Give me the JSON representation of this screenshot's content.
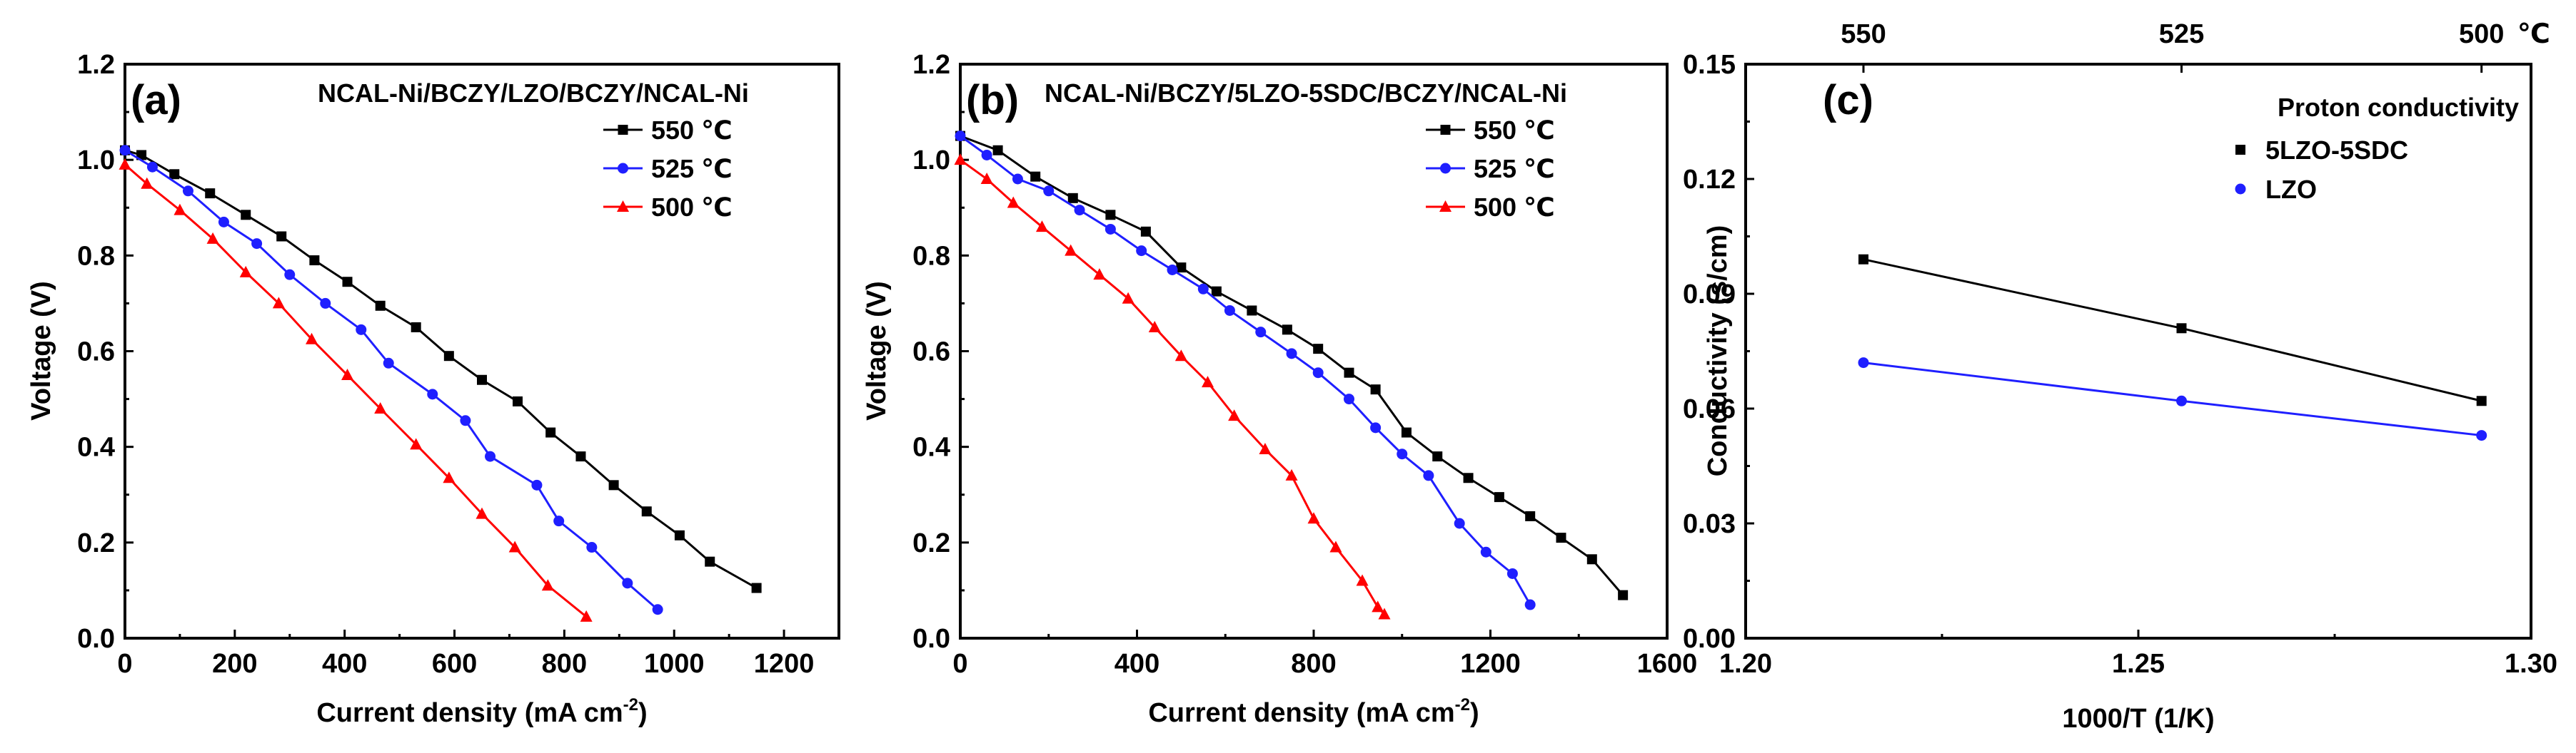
{
  "chart_data": [
    {
      "type": "line",
      "panel": "(a)",
      "title": "NCAL-Ni/BCZY/LZO/BCZY/NCAL-Ni",
      "xlabel_main": "Current density (mA cm",
      "xlabel_sup": "-2",
      "xlabel_end": ")",
      "ylabel": "Voltage (V)",
      "xlim": [
        0,
        1300
      ],
      "ylim": [
        0,
        1.2
      ],
      "xticks": [
        0,
        200,
        400,
        600,
        800,
        1000,
        1200
      ],
      "xtick_labels": [
        "0",
        "200",
        "400",
        "600",
        "800",
        "1000",
        "1200"
      ],
      "yticks": [
        0.0,
        0.2,
        0.4,
        0.6,
        0.8,
        1.0,
        1.2
      ],
      "ytick_labels": [
        "0.0",
        "0.2",
        "0.4",
        "0.6",
        "0.8",
        "1.0",
        "1.2"
      ],
      "legend_position": "top-right",
      "series": [
        {
          "name": "550 ℃",
          "color": "#000000",
          "marker": "square",
          "x": [
            0,
            30,
            90,
            155,
            220,
            285,
            345,
            405,
            465,
            530,
            590,
            650,
            715,
            775,
            830,
            890,
            950,
            1010,
            1065,
            1150
          ],
          "y": [
            1.02,
            1.01,
            0.97,
            0.93,
            0.885,
            0.84,
            0.79,
            0.745,
            0.695,
            0.65,
            0.59,
            0.54,
            0.495,
            0.43,
            0.38,
            0.32,
            0.265,
            0.215,
            0.16,
            0.105
          ]
        },
        {
          "name": "525 ℃",
          "color": "#1f1fff",
          "marker": "circle",
          "x": [
            0,
            50,
            115,
            180,
            240,
            300,
            365,
            430,
            480,
            560,
            620,
            665,
            750,
            790,
            850,
            915,
            970
          ],
          "y": [
            1.02,
            0.985,
            0.935,
            0.87,
            0.825,
            0.76,
            0.7,
            0.645,
            0.575,
            0.51,
            0.455,
            0.38,
            0.32,
            0.245,
            0.19,
            0.115,
            0.06
          ]
        },
        {
          "name": "500 ℃",
          "color": "#ff0000",
          "marker": "triangle",
          "x": [
            0,
            40,
            100,
            160,
            220,
            280,
            340,
            405,
            465,
            530,
            590,
            650,
            710,
            770,
            840
          ],
          "y": [
            0.99,
            0.95,
            0.895,
            0.835,
            0.765,
            0.7,
            0.625,
            0.55,
            0.48,
            0.405,
            0.335,
            0.26,
            0.19,
            0.11,
            0.045
          ]
        }
      ]
    },
    {
      "type": "line",
      "panel": "(b)",
      "title": "NCAL-Ni/BCZY/5LZO-5SDC/BCZY/NCAL-Ni",
      "xlabel_main": "Current density (mA cm",
      "xlabel_sup": "-2",
      "xlabel_end": ")",
      "ylabel": "Voltage (V)",
      "xlim": [
        0,
        1600
      ],
      "ylim": [
        0,
        1.2
      ],
      "xticks": [
        0,
        400,
        800,
        1200,
        1600
      ],
      "xtick_labels": [
        "0",
        "400",
        "800",
        "1200",
        "1600"
      ],
      "yticks": [
        0.0,
        0.2,
        0.4,
        0.6,
        0.8,
        1.0,
        1.2
      ],
      "ytick_labels": [
        "0.0",
        "0.2",
        "0.4",
        "0.6",
        "0.8",
        "1.0",
        "1.2"
      ],
      "legend_position": "top-right",
      "series": [
        {
          "name": "550 ℃",
          "color": "#000000",
          "marker": "square",
          "x": [
            0,
            85,
            170,
            255,
            340,
            420,
            500,
            580,
            660,
            740,
            810,
            880,
            940,
            1010,
            1080,
            1150,
            1220,
            1290,
            1360,
            1430,
            1500
          ],
          "y": [
            1.05,
            1.02,
            0.965,
            0.92,
            0.885,
            0.85,
            0.775,
            0.725,
            0.685,
            0.645,
            0.605,
            0.555,
            0.52,
            0.43,
            0.38,
            0.335,
            0.295,
            0.255,
            0.21,
            0.165,
            0.09
          ]
        },
        {
          "name": "525 ℃",
          "color": "#1f1fff",
          "marker": "circle",
          "x": [
            0,
            60,
            130,
            200,
            270,
            340,
            410,
            480,
            550,
            610,
            680,
            750,
            810,
            880,
            940,
            1000,
            1060,
            1130,
            1190,
            1250,
            1290
          ],
          "y": [
            1.05,
            1.01,
            0.96,
            0.935,
            0.895,
            0.855,
            0.81,
            0.77,
            0.73,
            0.685,
            0.64,
            0.595,
            0.555,
            0.5,
            0.44,
            0.385,
            0.34,
            0.24,
            0.18,
            0.135,
            0.07
          ]
        },
        {
          "name": "500 ℃",
          "color": "#ff0000",
          "marker": "triangle",
          "x": [
            0,
            60,
            120,
            185,
            250,
            315,
            380,
            440,
            500,
            560,
            620,
            690,
            750,
            800,
            850,
            910,
            945,
            960
          ],
          "y": [
            1.0,
            0.96,
            0.91,
            0.86,
            0.81,
            0.76,
            0.71,
            0.65,
            0.59,
            0.535,
            0.465,
            0.395,
            0.34,
            0.25,
            0.19,
            0.12,
            0.065,
            0.05
          ]
        }
      ]
    },
    {
      "type": "line",
      "panel": "(c)",
      "xlabel": "1000/T (1/K)",
      "ylabel": "Conductivity (s/cm)",
      "xlim": [
        1.2,
        1.3
      ],
      "ylim": [
        0.0,
        0.15
      ],
      "xticks": [
        1.2,
        1.25,
        1.3
      ],
      "xtick_labels": [
        "1.20",
        "1.25",
        "1.30"
      ],
      "yticks": [
        0.0,
        0.03,
        0.06,
        0.09,
        0.12,
        0.15
      ],
      "ytick_labels": [
        "0.00",
        "0.03",
        "0.06",
        "0.09",
        "0.12",
        "0.15"
      ],
      "top_axis": {
        "ticks": [
          1.215,
          1.2555,
          1.2937
        ],
        "labels": [
          "550",
          "525",
          "500"
        ],
        "unit": "℃"
      },
      "legend_title": "Proton conductivity",
      "legend_position": "top-right",
      "series": [
        {
          "name": "5LZO-5SDC",
          "color": "#000000",
          "marker": "square",
          "x": [
            1.215,
            1.2555,
            1.2937
          ],
          "y": [
            0.099,
            0.081,
            0.062
          ]
        },
        {
          "name": "LZO",
          "color": "#1f1fff",
          "marker": "circle",
          "x": [
            1.215,
            1.2555,
            1.2937
          ],
          "y": [
            0.072,
            0.062,
            0.053
          ]
        }
      ]
    }
  ]
}
